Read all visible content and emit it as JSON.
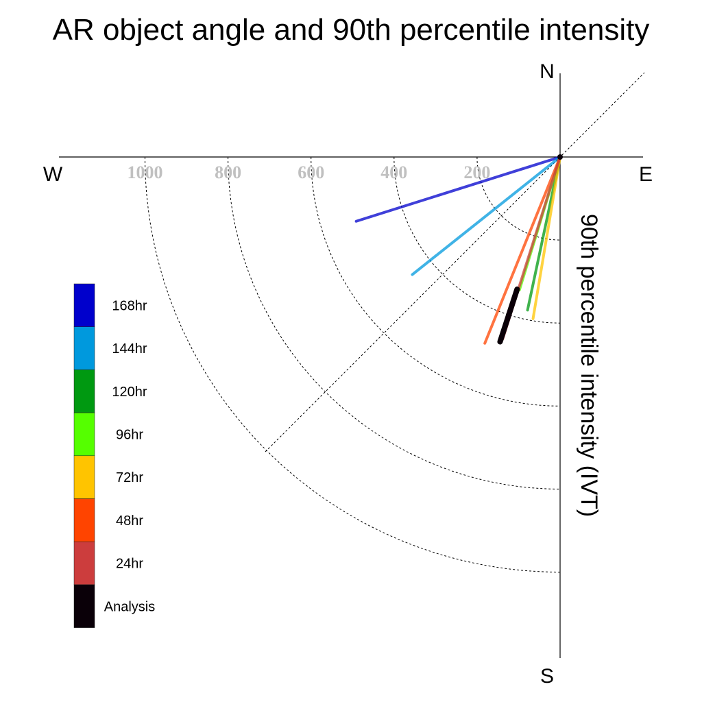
{
  "chart_data": {
    "type": "polar-line",
    "title": "AR object angle and 90th percentile intensity",
    "radial_label": "90th percentile intensity (IVT)",
    "directions": {
      "north": "N",
      "south": "S",
      "east": "E",
      "west": "W"
    },
    "radial_ticks": [
      200,
      400,
      600,
      800,
      1000
    ],
    "radial_tick_labels": [
      "200",
      "400",
      "600",
      "800",
      "1000"
    ],
    "radial_range": [
      0,
      1200
    ],
    "series": [
      {
        "name": "168hr",
        "color": "#0000CC",
        "angle_deg_below_west": 17.5,
        "intensity": 515
      },
      {
        "name": "144hr",
        "color": "#0099DD",
        "angle_deg_below_west": 38.5,
        "intensity": 455
      },
      {
        "name": "120hr",
        "color": "#009911",
        "angle_deg_below_west": 78.0,
        "intensity": 377
      },
      {
        "name": "96hr",
        "color": "#55FF00",
        "angle_deg_below_west": 73.0,
        "intensity": 335
      },
      {
        "name": "72hr",
        "color": "#FFC400",
        "angle_deg_below_west": 80.5,
        "intensity": 395
      },
      {
        "name": "48hr",
        "color": "#FF4400",
        "angle_deg_below_west": 68.0,
        "intensity": 484
      },
      {
        "name": "24hr",
        "color": "#CC3D3D",
        "angle_deg_below_west": 72.5,
        "intensity": 460
      },
      {
        "name": "Analysis",
        "color": "#0A0008",
        "angle_deg_below_west": 72.0,
        "intensity": 468,
        "segment_start": 335
      }
    ],
    "legend": {
      "placement": "left",
      "entries": [
        "168hr",
        "144hr",
        "120hr",
        "96hr",
        "72hr",
        "48hr",
        "24hr",
        "Analysis"
      ],
      "colors": [
        "#0000CC",
        "#0099DD",
        "#009911",
        "#55FF00",
        "#FFC400",
        "#FF4400",
        "#CC3D3D",
        "#0A0008"
      ]
    }
  }
}
